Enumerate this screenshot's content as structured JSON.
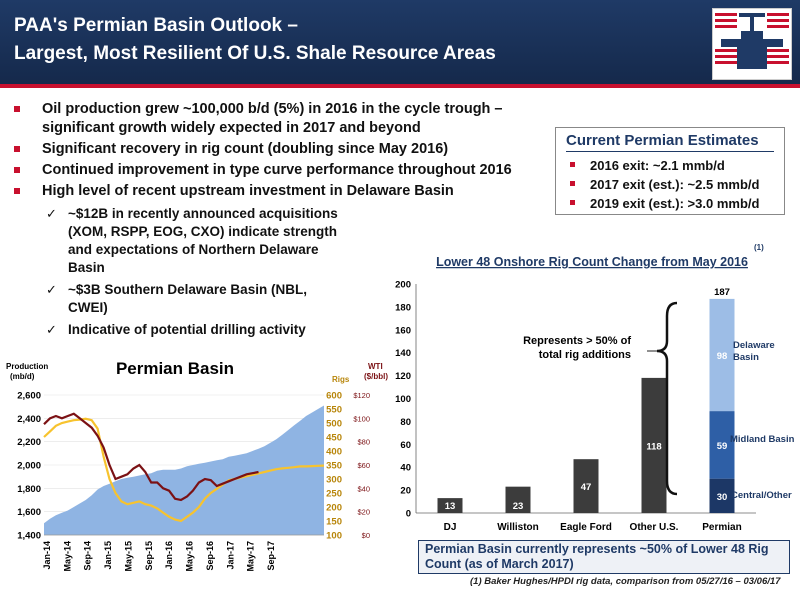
{
  "header": {
    "title_line1": "PAA's Permian Basin Outlook –",
    "title_line2": "Largest, Most Resilient Of U.S. Shale Resource Areas"
  },
  "colors": {
    "navy": "#1f3a66",
    "red": "#c8102e",
    "dark_bar": "#3c3c3c",
    "area_blue": "#8fb4e3",
    "rig_gold": "#f7c32e",
    "wti_maroon": "#7b1114"
  },
  "bullets": [
    "Oil production grew ~100,000 b/d (5%) in 2016 in the cycle trough – significant growth widely expected in 2017 and beyond",
    "Significant recovery in rig count (doubling since May 2016)",
    "Continued improvement in type curve performance throughout 2016",
    "High level of recent upstream investment in Delaware Basin"
  ],
  "sub_bullets": [
    "~$12B in recently announced acquisitions (XOM, RSPP, EOG, CXO) indicate strength and expectations of Northern Delaware Basin",
    "~$3B Southern Delaware Basin (NBL, CWEI)",
    "Indicative of potential drilling activity"
  ],
  "estimates": {
    "title": "Current Permian Estimates",
    "items": [
      "2016 exit: ~2.1 mmb/d",
      "2017 exit (est.): ~2.5 mmb/d",
      "2019 exit (est.): >3.0 mmb/d"
    ]
  },
  "bottom_callout": "Permian Basin currently represents ~50% of Lower 48 Rig Count (as of March 2017)",
  "footnote": "(1)  Baker Hughes/HPDI rig data, comparison from 05/27/16 – 03/06/17",
  "chart_data": [
    {
      "type": "line",
      "title": "Permian Basin",
      "left_axis_label": "Production (mb/d)",
      "left_axis_label_line1": "Production",
      "left_axis_label_line2": "(mb/d)",
      "rigs_axis_label": "Rigs",
      "wti_axis_label": "WTI ($/bbl)",
      "wti_axis_label_line1": "WTI",
      "wti_axis_label_line2": "($/bbl)",
      "left_ticks": [
        "1,400",
        "1,600",
        "1,800",
        "2,000",
        "2,200",
        "2,400",
        "2,600"
      ],
      "rig_ticks": [
        "100",
        "150",
        "200",
        "250",
        "300",
        "350",
        "400",
        "450",
        "500",
        "550",
        "600"
      ],
      "wti_ticks": [
        "$0",
        "$20",
        "$40",
        "$60",
        "$80",
        "$100",
        "$120"
      ],
      "x_ticks": [
        "Jan-14",
        "May-14",
        "Sep-14",
        "Jan-15",
        "May-15",
        "Sep-15",
        "Jan-16",
        "May-16",
        "Sep-16",
        "Jan-17",
        "May-17",
        "Sep-17"
      ],
      "ylim_production": [
        1400,
        2600
      ],
      "ylim_rigs": [
        100,
        600
      ],
      "ylim_wti": [
        0,
        120
      ],
      "x_months": 48,
      "production_series": [
        1500,
        1540,
        1570,
        1590,
        1610,
        1640,
        1670,
        1700,
        1740,
        1790,
        1820,
        1840,
        1860,
        1880,
        1890,
        1900,
        1910,
        1920,
        1930,
        1950,
        1960,
        1960,
        1960,
        1970,
        1990,
        2000,
        2010,
        2020,
        2030,
        2040,
        2050,
        2070,
        2080,
        2090,
        2100,
        2120,
        2140,
        2160,
        2190,
        2220,
        2260,
        2300,
        2340,
        2380,
        2420,
        2450,
        2480,
        2510
      ],
      "rigs_series": [
        450,
        470,
        490,
        500,
        505,
        510,
        512,
        515,
        510,
        480,
        380,
        300,
        250,
        220,
        210,
        215,
        220,
        210,
        205,
        195,
        180,
        165,
        155,
        150,
        165,
        180,
        200,
        230,
        250,
        265,
        280,
        295,
        300,
        305,
        310,
        315,
        320,
        325,
        330,
        335,
        338,
        340,
        342,
        345,
        345,
        346,
        347,
        348
      ],
      "wti_series": [
        95,
        100,
        102,
        100,
        102,
        104,
        100,
        96,
        92,
        85,
        75,
        60,
        48,
        50,
        52,
        57,
        60,
        54,
        45,
        45,
        40,
        38,
        31,
        30,
        33,
        38,
        45,
        48,
        47,
        42,
        44,
        46,
        48,
        50,
        52,
        53,
        54,
        null,
        null,
        null,
        null,
        null,
        null,
        null,
        null,
        null,
        null,
        null
      ]
    },
    {
      "type": "bar",
      "title": "Lower 48 Onshore Rig Count Change from May 2016",
      "title_note": "(1)",
      "categories": [
        "DJ",
        "Williston",
        "Eagle Ford",
        "Other U.S.",
        "Permian"
      ],
      "values": [
        13,
        23,
        47,
        118,
        187
      ],
      "permian_stack": [
        {
          "name": "Central/Other",
          "value": 30,
          "color": "#1c3766"
        },
        {
          "name": "Midland Basin",
          "value": 59,
          "color": "#2e5fa6"
        },
        {
          "name": "Delaware Basin",
          "value": 98,
          "color": "#9dbde6"
        }
      ],
      "delaware_label_line1": "Delaware",
      "delaware_label_line2": "Basin",
      "ylim": [
        0,
        200
      ],
      "y_ticks": [
        "0",
        "20",
        "40",
        "60",
        "80",
        "100",
        "120",
        "140",
        "160",
        "180",
        "200"
      ],
      "callout": "Represents > 50% of total rig additions",
      "callout_line1": "Represents > 50% of",
      "callout_line2": "total rig additions"
    }
  ]
}
